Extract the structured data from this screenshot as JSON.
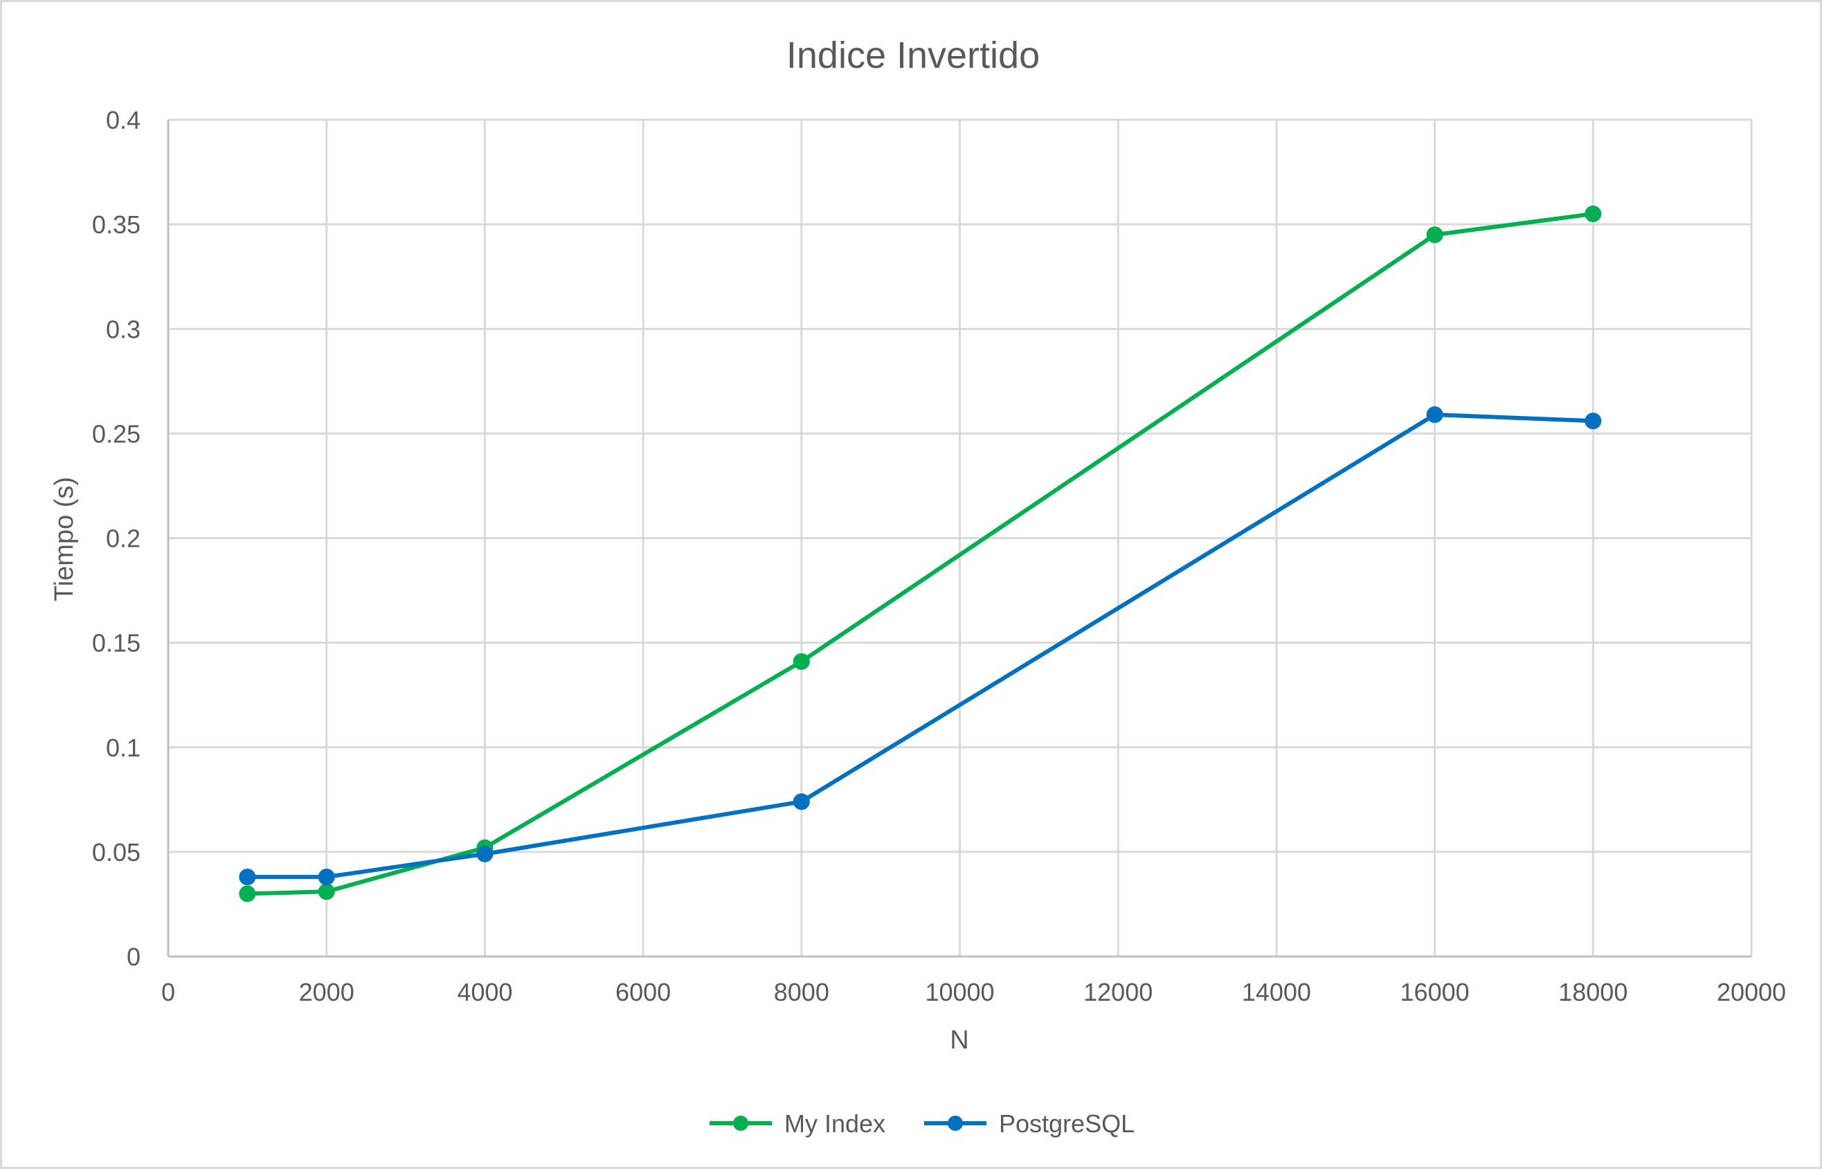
{
  "chart_data": {
    "type": "line",
    "title": "Indice Invertido",
    "xlabel": "N",
    "ylabel": "Tiempo (s)",
    "xlim": [
      0,
      20000
    ],
    "ylim": [
      0,
      0.4
    ],
    "x_ticks": [
      "0",
      "2000",
      "4000",
      "6000",
      "8000",
      "10000",
      "12000",
      "14000",
      "16000",
      "18000",
      "20000"
    ],
    "y_ticks": [
      "0",
      "0.05",
      "0.1",
      "0.15",
      "0.2",
      "0.25",
      "0.3",
      "0.35",
      "0.4"
    ],
    "grid": true,
    "legend_position": "bottom",
    "series": [
      {
        "name": "My Index",
        "color": "#00b050",
        "x": [
          1000,
          2000,
          4000,
          8000,
          16000,
          18000
        ],
        "y": [
          0.03,
          0.031,
          0.052,
          0.141,
          0.345,
          0.355
        ]
      },
      {
        "name": "PostgreSQL",
        "color": "#0070c0",
        "x": [
          1000,
          2000,
          4000,
          8000,
          16000,
          18000
        ],
        "y": [
          0.038,
          0.038,
          0.049,
          0.074,
          0.259,
          0.256
        ]
      }
    ]
  }
}
